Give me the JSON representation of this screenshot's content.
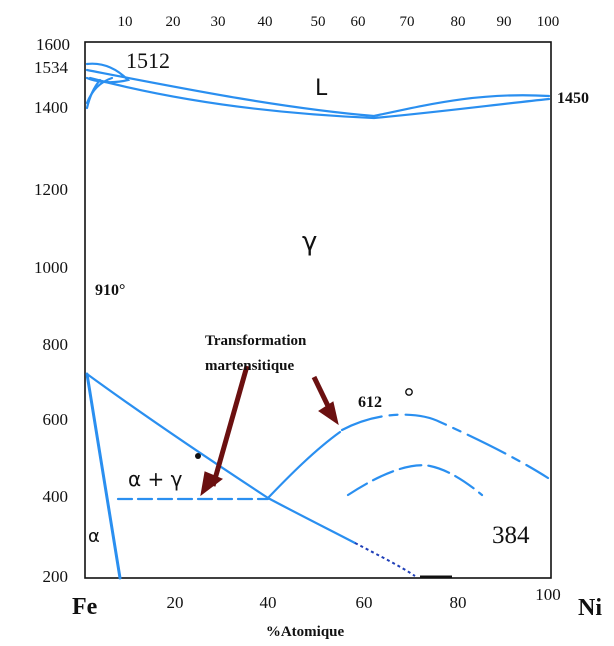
{
  "diagram": {
    "title": "",
    "x_axis": {
      "label": "%Atomique",
      "bottom_ticks": [
        "20",
        "40",
        "60",
        "80",
        "100"
      ],
      "top_ticks": [
        "10",
        "20",
        "30",
        "40",
        "50",
        "60",
        "70",
        "80",
        "90",
        "100"
      ],
      "left_element": "Fe",
      "right_element": "Ni"
    },
    "y_axis": {
      "ticks": [
        "1600",
        "1534",
        "1400",
        "1200",
        "1000",
        "800",
        "600",
        "400",
        "200"
      ]
    },
    "annotations": {
      "t_1512": "1512",
      "t_1450": "1450",
      "t_910": "910°",
      "t_612": "612",
      "t_384": "384",
      "transformation_line1": "Transformation",
      "transformation_line2": "martensitique"
    },
    "phases": {
      "liquid": "L",
      "gamma": "γ",
      "alpha_gamma": "α + γ",
      "alpha": "α"
    },
    "colors": {
      "phase_lines": "#2a8ff0",
      "arrows": "#6b1010",
      "text": "#111111"
    }
  }
}
